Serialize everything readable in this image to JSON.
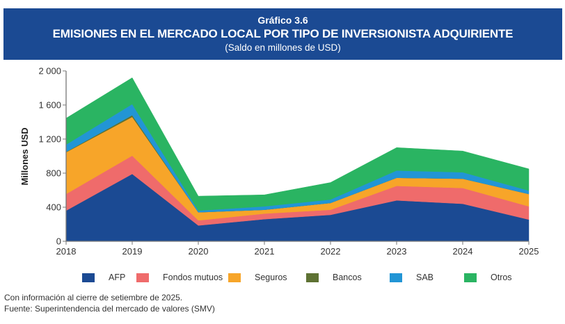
{
  "header": {
    "number": "Gráfico 3.6",
    "title": "EMISIONES EN EL MERCADO LOCAL POR TIPO DE INVERSIONISTA ADQUIRIENTE",
    "subtitle": "(Saldo en millones de USD)"
  },
  "chart_data": {
    "type": "area",
    "stacked": true,
    "title": "EMISIONES EN EL MERCADO LOCAL POR TIPO DE INVERSIONISTA ADQUIRIENTE",
    "subtitle": "(Saldo en millones de USD)",
    "xlabel": "",
    "ylabel": "Millones USD",
    "x": [
      "2018",
      "2019",
      "2020",
      "2021",
      "2022",
      "2023",
      "2024",
      "2025"
    ],
    "ylim": [
      0,
      2000
    ],
    "yticks": [
      0,
      400,
      800,
      1200,
      1600,
      2000
    ],
    "ytick_labels": [
      "0",
      "400",
      "800",
      "1 200",
      "1 600",
      "2 000"
    ],
    "grid": false,
    "legend_position": "bottom",
    "series": [
      {
        "name": "AFP",
        "color": "#1b4a93",
        "values": [
          360,
          790,
          185,
          260,
          310,
          480,
          440,
          255
        ]
      },
      {
        "name": "Fondos mutuos",
        "color": "#ef6b6b",
        "values": [
          195,
          215,
          60,
          65,
          60,
          170,
          185,
          155
        ]
      },
      {
        "name": "Seguros",
        "color": "#f7a529",
        "values": [
          490,
          455,
          95,
          45,
          80,
          95,
          110,
          145
        ]
      },
      {
        "name": "Bancos",
        "color": "#5e7233",
        "values": [
          5,
          20,
          0,
          0,
          0,
          0,
          0,
          0
        ]
      },
      {
        "name": "SAB",
        "color": "#2295d5",
        "values": [
          85,
          130,
          20,
          40,
          40,
          85,
          75,
          40
        ]
      },
      {
        "name": "Otros",
        "color": "#2ab462",
        "values": [
          310,
          310,
          170,
          135,
          200,
          270,
          250,
          255
        ]
      }
    ]
  },
  "legend": [
    {
      "label": "AFP",
      "color": "#1b4a93"
    },
    {
      "label": "Fondos mutuos",
      "color": "#ef6b6b"
    },
    {
      "label": "Seguros",
      "color": "#f7a529"
    },
    {
      "label": "Bancos",
      "color": "#5e7233"
    },
    {
      "label": "SAB",
      "color": "#2295d5"
    },
    {
      "label": "Otros",
      "color": "#2ab462"
    }
  ],
  "footer": {
    "note": "Con información al cierre de setiembre de 2025.",
    "source": "Fuente: Superintendencia del mercado de valores (SMV)"
  }
}
